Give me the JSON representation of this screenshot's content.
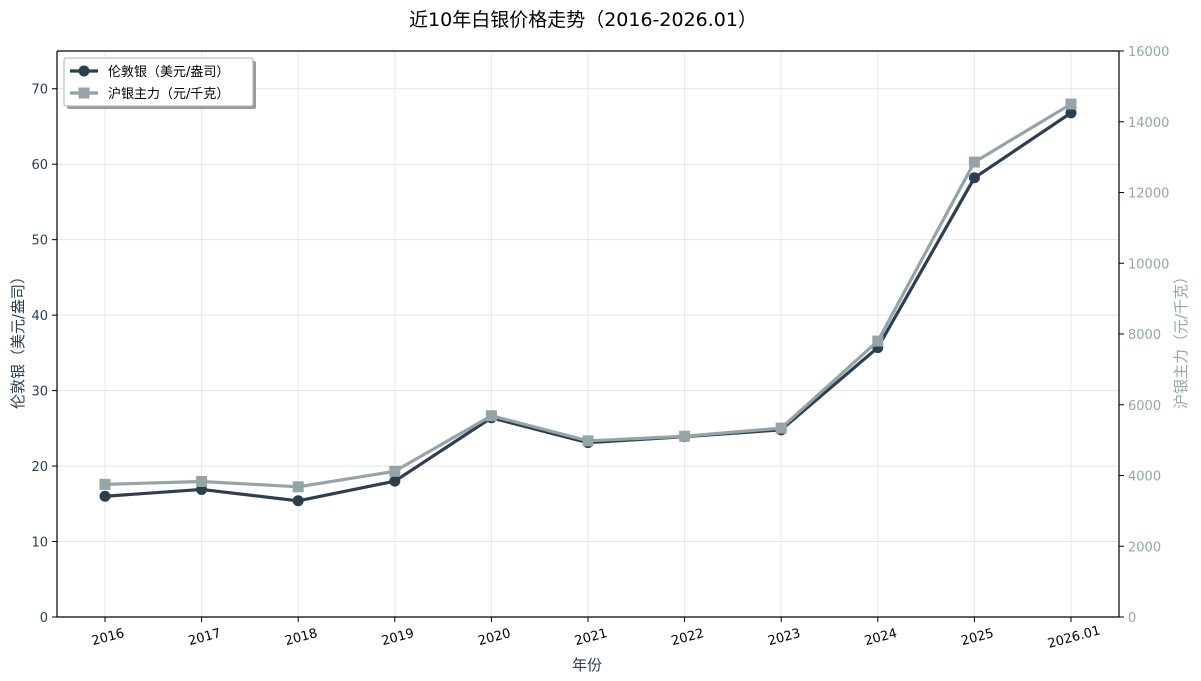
{
  "chart_data": {
    "type": "line",
    "title": "近10年白银价格走势（2016-2026.01）",
    "xlabel": "年份",
    "ylabel_left": "伦敦银（美元/盎司）",
    "ylabel_right": "沪银主力（元/千克）",
    "categories": [
      "2016",
      "2017",
      "2018",
      "2019",
      "2020",
      "2021",
      "2022",
      "2023",
      "2024",
      "2025",
      "2026.01"
    ],
    "ylim_left": [
      0,
      75
    ],
    "ylim_right": [
      0,
      16000
    ],
    "yticks_left": [
      0,
      10,
      20,
      30,
      40,
      50,
      60,
      70
    ],
    "yticks_right": [
      0,
      2000,
      4000,
      6000,
      8000,
      10000,
      12000,
      14000,
      16000
    ],
    "grid": true,
    "legend_position": "top-left",
    "series": [
      {
        "name": "伦敦银（美元/盎司）",
        "axis": "left",
        "marker": "circle",
        "color": "#2c3e50",
        "values": [
          16.0,
          16.9,
          15.4,
          18.0,
          26.4,
          23.1,
          23.9,
          24.8,
          35.7,
          58.2,
          66.8
        ]
      },
      {
        "name": "沪银主力（元/千克）",
        "axis": "right",
        "marker": "square",
        "color": "#95a5a6",
        "values": [
          3750,
          3830,
          3680,
          4120,
          5690,
          4980,
          5110,
          5340,
          7800,
          12860,
          14500
        ]
      }
    ]
  }
}
